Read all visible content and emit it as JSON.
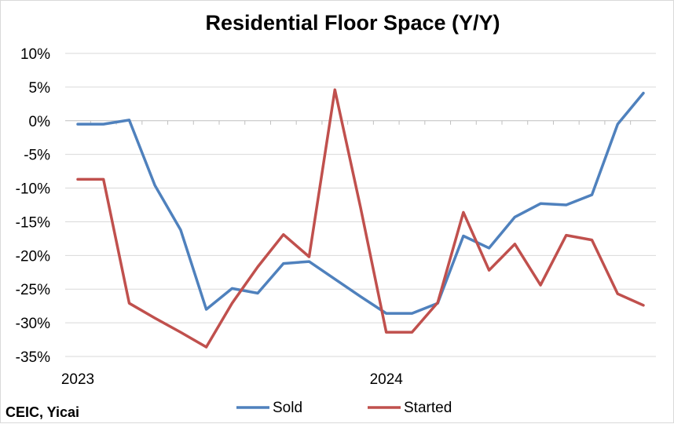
{
  "chart_data": {
    "type": "line",
    "title": "Residential Floor Space (Y/Y)",
    "source": "CEIC, Yicai",
    "y_tick_labels": [
      "10%",
      "5%",
      "0%",
      "-5%",
      "-10%",
      "-15%",
      "-20%",
      "-25%",
      "-30%",
      "-35%"
    ],
    "ylim": [
      -35,
      10
    ],
    "y_step": 5,
    "x_tick_labels": [
      {
        "label": "2023",
        "index": 0
      },
      {
        "label": "2024",
        "index": 12
      }
    ],
    "grid": "horizontal",
    "legend_position": "bottom",
    "series": [
      {
        "name": "Sold",
        "color": "#4F81BD",
        "values": [
          -0.5,
          -0.5,
          0.1,
          -9.6,
          -16.2,
          -28.0,
          -24.9,
          -25.6,
          -21.2,
          -20.9,
          -23.5,
          -26.1,
          -28.6,
          -28.6,
          -27.1,
          -17.1,
          -18.9,
          -14.3,
          -12.3,
          -12.5,
          -11.0,
          -0.5,
          4.1
        ]
      },
      {
        "name": "Started",
        "color": "#C0504D",
        "values": [
          -8.7,
          -8.7,
          -27.1,
          -29.3,
          -31.4,
          -33.6,
          -27.1,
          -21.7,
          -16.9,
          -20.2,
          4.6,
          -12.9,
          -31.4,
          -31.4,
          -27.0,
          -13.6,
          -22.2,
          -18.3,
          -24.4,
          -17.0,
          -17.7,
          -25.7,
          -27.4
        ]
      }
    ]
  }
}
